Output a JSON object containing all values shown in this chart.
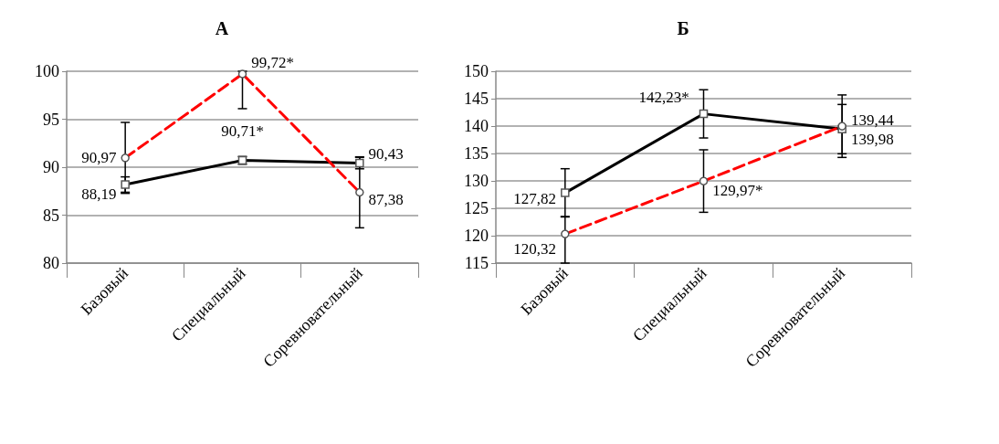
{
  "chart_data": [
    {
      "type": "line",
      "title": "А",
      "categories": [
        "Базовый",
        "Специальный",
        "Соревновательный"
      ],
      "ylim": [
        80,
        100
      ],
      "yticks": [
        80,
        85,
        90,
        95,
        100
      ],
      "grid": "y",
      "series": [
        {
          "color": "#000000",
          "marker": "square",
          "line_style": "solid",
          "values": [
            88.19,
            90.71,
            90.43
          ],
          "value_labels": [
            "88,19",
            "90,71*",
            "90,43"
          ],
          "errors": [
            0.8,
            0.4,
            0.6
          ]
        },
        {
          "color": "#ff0000",
          "marker": "circle",
          "line_style": "dashed",
          "values": [
            90.97,
            99.72,
            87.38
          ],
          "value_labels": [
            "90,97",
            "99,72*",
            "87,38"
          ],
          "errors": [
            3.7,
            [
              96.1,
              100
            ],
            3.7
          ]
        }
      ]
    },
    {
      "type": "line",
      "title": "Б",
      "categories": [
        "Базовый",
        "Специальный",
        "Соревновательный"
      ],
      "ylim": [
        115,
        150
      ],
      "yticks": [
        115,
        120,
        125,
        130,
        135,
        140,
        145,
        150
      ],
      "grid": "y",
      "series": [
        {
          "color": "#000000",
          "marker": "square",
          "line_style": "solid",
          "values": [
            127.82,
            142.23,
            139.44
          ],
          "value_labels": [
            "127,82",
            "142,23*",
            "139,44"
          ],
          "errors": [
            4.4,
            4.4,
            4.5
          ]
        },
        {
          "color": "#ff0000",
          "marker": "circle",
          "line_style": "dashed",
          "values": [
            120.32,
            129.97,
            139.98
          ],
          "value_labels": [
            "120,32",
            "129,97*",
            "139,98"
          ],
          "errors": [
            [
              115,
              123.5
            ],
            5.7,
            5.7
          ]
        }
      ]
    }
  ]
}
